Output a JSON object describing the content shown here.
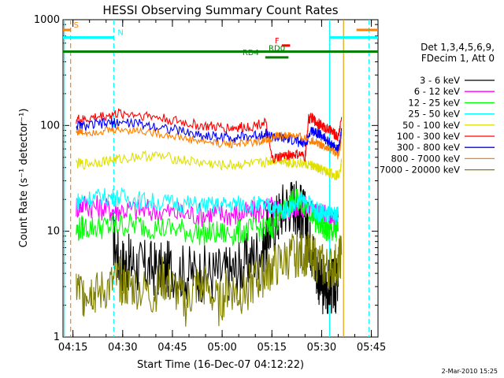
{
  "chart_data": {
    "type": "line",
    "title": "HESSI Observing Summary Count Rates",
    "xlabel": "Start Time (16-Dec-07 04:12:22)",
    "ylabel": "Count Rate (s⁻¹ detector⁻¹)",
    "x_unit": "minutes after 04:12:22 UT",
    "xlim": [
      0,
      95
    ],
    "ylim": [
      1,
      1000
    ],
    "y_scale": "log",
    "x_ticks": [
      {
        "label": "04:15",
        "value": 3
      },
      {
        "label": "04:30",
        "value": 18
      },
      {
        "label": "04:45",
        "value": 33
      },
      {
        "label": "05:00",
        "value": 48
      },
      {
        "label": "05:15",
        "value": 63
      },
      {
        "label": "05:30",
        "value": 78
      },
      {
        "label": "05:45",
        "value": 93
      }
    ],
    "y_ticks": [
      {
        "label": "1",
        "value": 1
      },
      {
        "label": "10",
        "value": 10
      },
      {
        "label": "100",
        "value": 100
      },
      {
        "label": "1000",
        "value": 1000
      }
    ],
    "legend": {
      "placement": "right",
      "header": [
        "Det 1,3,4,5,6,9,",
        "FDecim 1, Att 0"
      ]
    },
    "footer_text": "2-Mar-2010 15:25",
    "series": [
      {
        "name": "3 - 6 keV",
        "color": "#000000",
        "x": [
          15,
          17,
          19,
          21,
          24,
          27,
          30,
          33,
          37,
          41,
          45,
          49,
          52,
          55,
          58,
          61,
          62,
          64,
          66,
          68,
          70,
          71,
          72,
          73,
          74,
          75,
          76,
          77,
          78,
          79,
          80,
          81,
          82,
          83
        ],
        "y": [
          9,
          5,
          5,
          5,
          4.5,
          4.5,
          4.2,
          4.5,
          4,
          4,
          4,
          4,
          4.2,
          5,
          6,
          7.5,
          10,
          12,
          16,
          18,
          18,
          16,
          15,
          13,
          10,
          7,
          5,
          4,
          3,
          3,
          3,
          3,
          3,
          3
        ]
      },
      {
        "name": "6 - 12 keV",
        "color": "#ff00ff",
        "x": [
          4,
          6,
          10,
          14,
          17,
          22,
          27,
          33,
          38,
          43,
          47,
          51,
          54,
          58,
          61,
          63,
          65,
          67,
          69,
          71,
          73,
          75,
          76,
          77,
          78,
          79,
          80,
          81,
          82,
          83
        ],
        "y": [
          17,
          18,
          17,
          16,
          16,
          16,
          15.5,
          15,
          14.5,
          14.5,
          14.5,
          14.5,
          14.5,
          15,
          16,
          17,
          16,
          16,
          17,
          18,
          17,
          16,
          15,
          14.5,
          14,
          14,
          13.5,
          13,
          13,
          13.5
        ]
      },
      {
        "name": "12 - 25 keV",
        "color": "#00ff00",
        "x": [
          4,
          6,
          10,
          14,
          17,
          22,
          27,
          33,
          38,
          43,
          47,
          51,
          54,
          58,
          61,
          63,
          65,
          67,
          69,
          71,
          73,
          75,
          76,
          77,
          78,
          79,
          80,
          81,
          82,
          83
        ],
        "y": [
          10,
          11,
          11,
          11,
          11.5,
          11.5,
          11,
          10.5,
          10,
          9.5,
          9.5,
          9.5,
          10,
          10.5,
          10.5,
          11,
          13,
          16,
          19,
          20,
          18,
          15,
          13,
          12,
          11,
          10.5,
          10,
          10,
          9.5,
          10
        ]
      },
      {
        "name": "25 - 50 keV",
        "color": "#00ffff",
        "x": [
          4,
          6,
          10,
          14,
          17,
          22,
          27,
          33,
          38,
          43,
          47,
          51,
          54,
          58,
          61,
          63,
          65,
          67,
          69,
          71,
          73,
          75,
          76,
          77,
          78,
          79,
          80,
          81,
          82,
          83
        ],
        "y": [
          19,
          20,
          21,
          21,
          21,
          20,
          19,
          18.5,
          18,
          17.5,
          17.5,
          18,
          18,
          18,
          17,
          17,
          16,
          16,
          17,
          19,
          19,
          17,
          16,
          15,
          15,
          14.5,
          14.5,
          14,
          14,
          14.5
        ]
      },
      {
        "name": "50 - 100 keV",
        "color": "#e0e000",
        "x": [
          4,
          6,
          10,
          14,
          17,
          22,
          27,
          33,
          38,
          43,
          47,
          51,
          54,
          58,
          61,
          63,
          65,
          67,
          69,
          71,
          73,
          75,
          76,
          77,
          78,
          79,
          80,
          81,
          82,
          83,
          84
        ],
        "y": [
          44,
          43,
          45,
          47,
          48,
          51,
          52,
          49,
          46,
          44,
          42,
          42,
          43,
          43,
          45,
          47,
          48,
          46,
          44,
          44,
          43,
          42,
          40,
          39,
          38,
          37,
          36,
          35,
          34,
          34,
          45
        ]
      },
      {
        "name": "100 - 300 keV",
        "color": "#ff0000",
        "x": [
          4,
          6,
          10,
          14,
          17,
          22,
          27,
          33,
          38,
          43,
          47,
          51,
          54,
          58,
          61,
          63,
          65,
          67,
          69,
          71,
          73,
          74,
          75,
          76,
          77,
          78,
          79,
          80,
          81,
          82,
          83,
          84
        ],
        "y": [
          115,
          112,
          120,
          125,
          130,
          128,
          122,
          112,
          104,
          98,
          96,
          95,
          96,
          100,
          110,
          48,
          50,
          52,
          53,
          53,
          50,
          115,
          118,
          110,
          105,
          100,
          95,
          92,
          88,
          82,
          78,
          120
        ]
      },
      {
        "name": "300 - 800 keV",
        "color": "#0000ff",
        "x": [
          4,
          6,
          10,
          14,
          17,
          22,
          27,
          33,
          38,
          43,
          47,
          51,
          54,
          58,
          61,
          63,
          65,
          67,
          69,
          71,
          73,
          75,
          76,
          77,
          78,
          79,
          80,
          81,
          82,
          83,
          84
        ],
        "y": [
          100,
          98,
          102,
          105,
          107,
          104,
          100,
          92,
          85,
          80,
          78,
          77,
          78,
          80,
          85,
          78,
          76,
          75,
          73,
          70,
          66,
          90,
          88,
          85,
          80,
          75,
          70,
          66,
          62,
          58,
          90
        ]
      },
      {
        "name": "800 - 7000 keV",
        "color": "#ff8000",
        "x": [
          4,
          6,
          10,
          14,
          17,
          22,
          27,
          33,
          38,
          43,
          47,
          51,
          54,
          58,
          61,
          63,
          65,
          67,
          69,
          71,
          73,
          75,
          76,
          77,
          78,
          79,
          80,
          81,
          82,
          83,
          84
        ],
        "y": [
          88,
          86,
          88,
          90,
          92,
          90,
          86,
          80,
          74,
          70,
          68,
          67,
          68,
          70,
          73,
          76,
          79,
          80,
          80,
          78,
          75,
          72,
          70,
          68,
          66,
          63,
          60,
          58,
          55,
          52,
          75
        ]
      },
      {
        "name": "7000 - 20000 keV",
        "color": "#808000",
        "x": [
          4,
          6,
          8,
          10,
          14,
          17,
          19,
          22,
          27,
          30,
          33,
          37,
          40,
          43,
          47,
          50,
          53,
          56,
          59,
          61,
          63,
          66,
          69,
          71,
          73,
          75,
          77,
          79,
          81,
          83,
          84
        ],
        "y": [
          3,
          2.5,
          3,
          2.5,
          3,
          3.5,
          3,
          3,
          2.5,
          3.5,
          3,
          2,
          3,
          3,
          2,
          3,
          2.5,
          3,
          3.5,
          4,
          4.5,
          5,
          6,
          6,
          6,
          6,
          5,
          4.5,
          4.5,
          5,
          6
        ]
      }
    ],
    "annotations": {
      "vlines": [
        {
          "x": 0.4,
          "color": "#00ffff",
          "style": "solid"
        },
        {
          "x": 2.3,
          "color": "#ff8000",
          "style": "dashed"
        },
        {
          "x": 15.3,
          "color": "#00ffff",
          "style": "dashed"
        },
        {
          "x": 80.4,
          "color": "#00ffff",
          "style": "solid"
        },
        {
          "x": 84.6,
          "color": "#e0a000",
          "style": "solid"
        },
        {
          "x": 92.3,
          "color": "#00ffff",
          "style": "dashed"
        }
      ],
      "status_bars": [
        {
          "name": "S",
          "color": "#ff8000",
          "label": "S",
          "x": [
            0,
            2.3,
            88.5,
            95
          ],
          "y": 800
        },
        {
          "name": "N",
          "color": "#00ffff",
          "label": "N",
          "x": [
            0,
            15.3,
            80.4,
            95
          ],
          "y": 680
        },
        {
          "name": "F",
          "color": "#ff0000",
          "label": "F",
          "x": [
            66,
            68.5
          ],
          "y": 570
        },
        {
          "name": "RD0",
          "color": "#008000",
          "label": "RD0",
          "x": [
            0,
            95
          ],
          "y": 500
        },
        {
          "name": "RD4",
          "color": "#008000",
          "label": "RD4",
          "x": [
            61,
            68
          ],
          "y": 440
        }
      ]
    }
  }
}
